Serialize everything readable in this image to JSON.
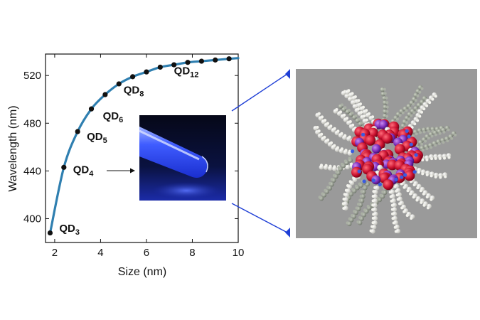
{
  "chart_data": {
    "type": "line",
    "xlabel": "Size (nm)",
    "ylabel": "Wavelength (nm)",
    "xlim": [
      1.6,
      10
    ],
    "ylim": [
      380,
      538
    ],
    "x_ticks": [
      "2",
      "4",
      "6",
      "8",
      "10"
    ],
    "y_ticks": [
      "400",
      "440",
      "480",
      "520"
    ],
    "series": [
      {
        "x": [
          1.8,
          2.4,
          3.0,
          3.6,
          4.2,
          4.8,
          5.4,
          6.0,
          6.6,
          7.2,
          7.8,
          8.4,
          9.0,
          9.6
        ],
        "y": [
          388,
          443,
          473,
          492,
          504,
          513,
          519,
          523,
          527,
          529,
          531,
          532,
          533,
          534
        ]
      }
    ],
    "curve_color": "#2f7fb0",
    "marker_color": "#111111",
    "annotations": [
      {
        "text": "QD",
        "sub": "3",
        "x": 2.2,
        "y": 389
      },
      {
        "text": "QD",
        "sub": "4",
        "x": 2.8,
        "y": 438
      },
      {
        "text": "QD",
        "sub": "5",
        "x": 3.4,
        "y": 466
      },
      {
        "text": "QD",
        "sub": "6",
        "x": 4.1,
        "y": 483
      },
      {
        "text": "QD",
        "sub": "8",
        "x": 5.0,
        "y": 505
      },
      {
        "text": "QD",
        "sub": "12",
        "x": 7.2,
        "y": 521
      }
    ]
  },
  "images": {
    "inset": "vial of quantum dot solution glowing blue under UV light",
    "particle": "ball-and-stick model of a quantum dot with ligand shell",
    "particle_bg": "#9a9a9a",
    "connector_color": "#1f3fd6"
  }
}
